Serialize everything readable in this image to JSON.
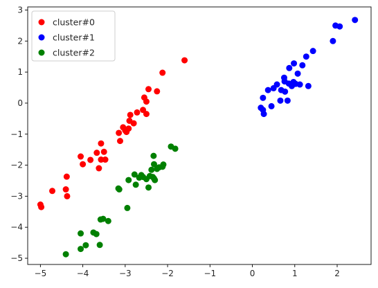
{
  "chart_data": {
    "type": "scatter",
    "title": "",
    "xlabel": "",
    "ylabel": "",
    "xlim": [
      -5.3,
      2.8
    ],
    "ylim": [
      -5.2,
      3.1
    ],
    "xticks": [
      -5,
      -4,
      -3,
      -2,
      -1,
      0,
      1,
      2
    ],
    "yticks": [
      -5,
      -4,
      -3,
      -2,
      -1,
      0,
      1,
      2,
      3
    ],
    "grid": false,
    "legend_position": "top-left",
    "series": [
      {
        "name": "cluster#0",
        "color": "#ff0000",
        "points": [
          [
            -5.0,
            -3.27
          ],
          [
            -4.98,
            -3.35
          ],
          [
            -4.72,
            -2.83
          ],
          [
            -4.38,
            -2.37
          ],
          [
            -4.4,
            -2.78
          ],
          [
            -4.37,
            -3.0
          ],
          [
            -4.05,
            -1.72
          ],
          [
            -4.0,
            -1.97
          ],
          [
            -3.82,
            -1.83
          ],
          [
            -3.67,
            -1.6
          ],
          [
            -3.62,
            -2.1
          ],
          [
            -3.57,
            -1.82
          ],
          [
            -3.57,
            -1.3
          ],
          [
            -3.5,
            -1.57
          ],
          [
            -3.47,
            -1.82
          ],
          [
            -3.15,
            -0.96
          ],
          [
            -3.12,
            -1.22
          ],
          [
            -3.05,
            -0.78
          ],
          [
            -3.0,
            -0.88
          ],
          [
            -2.97,
            -0.93
          ],
          [
            -2.92,
            -0.82
          ],
          [
            -2.88,
            -0.38
          ],
          [
            -2.9,
            -0.57
          ],
          [
            -2.8,
            -0.65
          ],
          [
            -2.72,
            -0.3
          ],
          [
            -2.58,
            -0.22
          ],
          [
            -2.55,
            0.18
          ],
          [
            -2.5,
            -0.35
          ],
          [
            -2.5,
            0.05
          ],
          [
            -2.45,
            0.45
          ],
          [
            -2.25,
            0.38
          ],
          [
            -2.12,
            0.98
          ],
          [
            -1.6,
            1.38
          ]
        ]
      },
      {
        "name": "cluster#1",
        "color": "#0000ff",
        "points": [
          [
            0.2,
            -0.15
          ],
          [
            0.25,
            -0.22
          ],
          [
            0.25,
            0.17
          ],
          [
            0.27,
            -0.35
          ],
          [
            0.37,
            0.42
          ],
          [
            0.45,
            -0.1
          ],
          [
            0.5,
            0.48
          ],
          [
            0.58,
            0.6
          ],
          [
            0.66,
            0.08
          ],
          [
            0.68,
            0.42
          ],
          [
            0.75,
            0.82
          ],
          [
            0.76,
            0.7
          ],
          [
            0.77,
            0.37
          ],
          [
            0.83,
            0.08
          ],
          [
            0.86,
            0.63
          ],
          [
            0.87,
            1.13
          ],
          [
            0.93,
            0.55
          ],
          [
            0.97,
            0.68
          ],
          [
            0.98,
            1.28
          ],
          [
            1.02,
            0.62
          ],
          [
            1.07,
            0.95
          ],
          [
            1.12,
            0.6
          ],
          [
            1.18,
            1.22
          ],
          [
            1.27,
            1.5
          ],
          [
            1.32,
            0.55
          ],
          [
            1.43,
            1.68
          ],
          [
            1.9,
            2.0
          ],
          [
            1.96,
            2.5
          ],
          [
            2.06,
            2.47
          ],
          [
            2.42,
            2.68
          ]
        ]
      },
      {
        "name": "cluster#2",
        "color": "#008000",
        "points": [
          [
            -4.4,
            -4.87
          ],
          [
            -4.05,
            -4.7
          ],
          [
            -4.05,
            -4.2
          ],
          [
            -3.93,
            -4.58
          ],
          [
            -3.75,
            -4.17
          ],
          [
            -3.68,
            -4.22
          ],
          [
            -3.6,
            -4.57
          ],
          [
            -3.58,
            -3.75
          ],
          [
            -3.52,
            -3.73
          ],
          [
            -3.4,
            -3.8
          ],
          [
            -3.16,
            -2.75
          ],
          [
            -3.14,
            -2.78
          ],
          [
            -2.95,
            -3.38
          ],
          [
            -2.92,
            -2.48
          ],
          [
            -2.78,
            -2.3
          ],
          [
            -2.75,
            -2.63
          ],
          [
            -2.67,
            -2.4
          ],
          [
            -2.62,
            -2.32
          ],
          [
            -2.58,
            -2.38
          ],
          [
            -2.5,
            -2.45
          ],
          [
            -2.45,
            -2.72
          ],
          [
            -2.42,
            -2.35
          ],
          [
            -2.38,
            -2.15
          ],
          [
            -2.35,
            -2.38
          ],
          [
            -2.32,
            -2.43
          ],
          [
            -2.33,
            -1.7
          ],
          [
            -2.32,
            -1.97
          ],
          [
            -2.3,
            -2.48
          ],
          [
            -2.25,
            -2.12
          ],
          [
            -2.2,
            -2.07
          ],
          [
            -2.12,
            -2.05
          ],
          [
            -2.1,
            -1.98
          ],
          [
            -1.92,
            -1.4
          ],
          [
            -1.82,
            -1.47
          ]
        ]
      }
    ]
  }
}
